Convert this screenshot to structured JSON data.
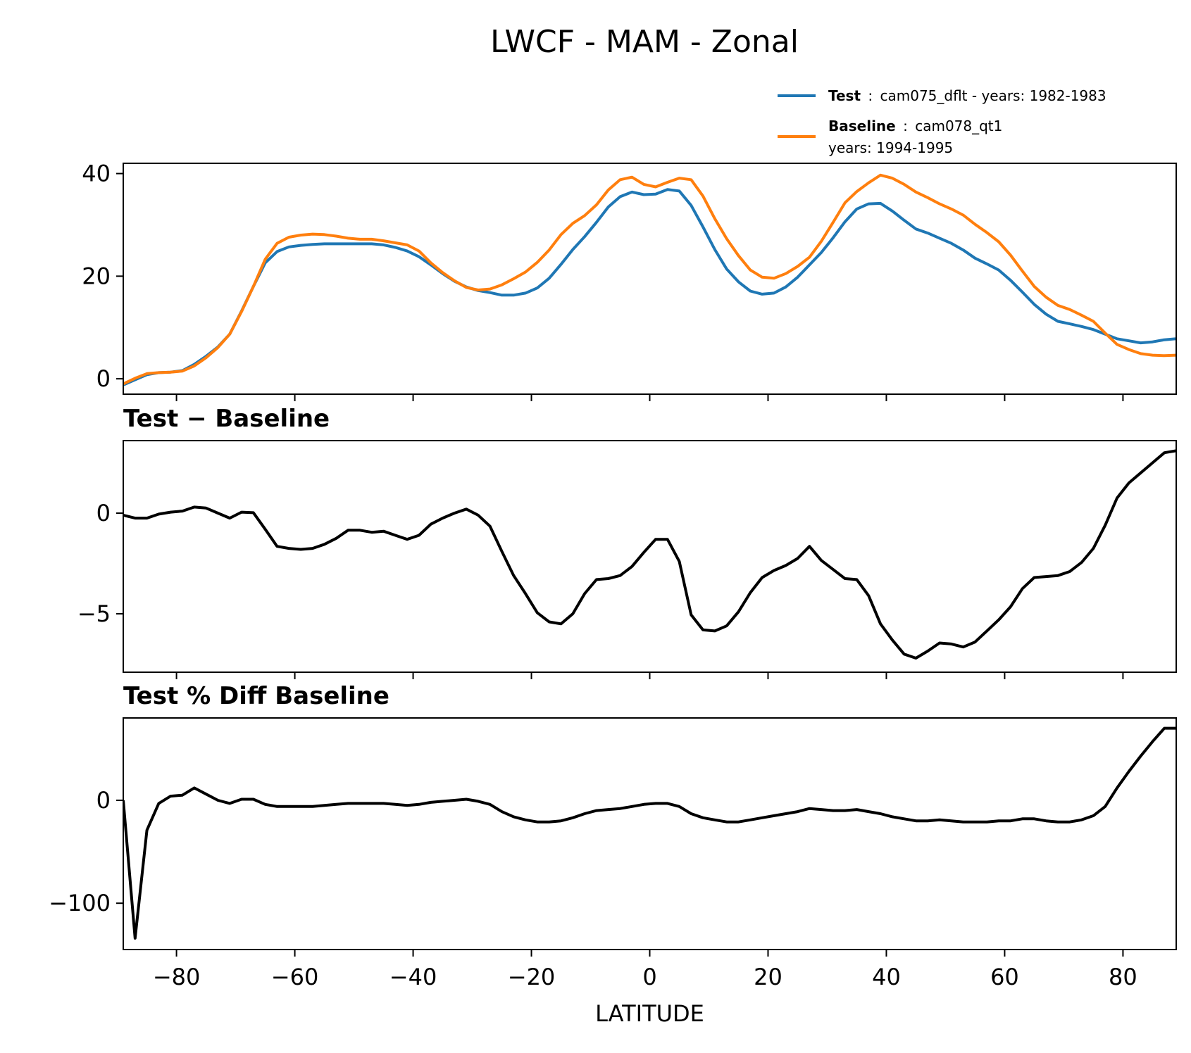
{
  "figure": {
    "title": "LWCF - MAM - Zonal"
  },
  "legend": {
    "entries": [
      {
        "bold": "Test",
        "sep": ":",
        "text": "cam075_dflt - years: 1982-1983",
        "line2": "",
        "color": "#1f77b4"
      },
      {
        "bold": "Baseline",
        "sep": ":",
        "text": "cam078_qt1",
        "line2": "years: 1994-1995",
        "color": "#ff7f0e"
      }
    ]
  },
  "chart_data": [
    {
      "type": "line",
      "title": "",
      "xlabel": "",
      "ylabel": "",
      "xlim": [
        -89,
        89
      ],
      "ylim": [
        -3,
        42
      ],
      "yticks": [
        0,
        20,
        40
      ],
      "xticks": [
        -80,
        -60,
        -40,
        -20,
        0,
        20,
        40,
        60,
        80
      ],
      "show_xtick_labels": false,
      "grid": false,
      "legend": "top-right",
      "x": [
        -89,
        -87,
        -85,
        -83,
        -81,
        -79,
        -77,
        -75,
        -73,
        -71,
        -69,
        -67,
        -65,
        -63,
        -61,
        -59,
        -57,
        -55,
        -53,
        -51,
        -49,
        -47,
        -45,
        -43,
        -41,
        -39,
        -37,
        -35,
        -33,
        -31,
        -29,
        -27,
        -25,
        -23,
        -21,
        -19,
        -17,
        -15,
        -13,
        -11,
        -9,
        -7,
        -5,
        -3,
        -1,
        1,
        3,
        5,
        7,
        9,
        11,
        13,
        15,
        17,
        19,
        21,
        23,
        25,
        27,
        29,
        31,
        33,
        35,
        37,
        39,
        41,
        43,
        45,
        47,
        49,
        51,
        53,
        55,
        57,
        59,
        61,
        63,
        65,
        67,
        69,
        71,
        73,
        75,
        77,
        79,
        81,
        83,
        85,
        87,
        89
      ],
      "series": [
        {
          "name": "Test",
          "color": "#1f77b4",
          "values": [
            -1.2,
            -0.2,
            0.8,
            1.2,
            1.3,
            1.6,
            2.8,
            4.4,
            6.2,
            8.7,
            13.2,
            18.0,
            22.6,
            24.8,
            25.7,
            26.0,
            26.2,
            26.3,
            26.3,
            26.3,
            26.3,
            26.3,
            26.1,
            25.6,
            24.9,
            23.8,
            22.2,
            20.5,
            19.0,
            17.9,
            17.2,
            16.8,
            16.3,
            16.3,
            16.7,
            17.7,
            19.6,
            22.3,
            25.2,
            27.7,
            30.5,
            33.5,
            35.5,
            36.4,
            35.9,
            36.0,
            36.9,
            36.6,
            33.8,
            29.6,
            25.2,
            21.4,
            18.9,
            17.1,
            16.5,
            16.7,
            17.9,
            19.8,
            22.2,
            24.6,
            27.5,
            30.6,
            33.1,
            34.1,
            34.2,
            32.7,
            30.9,
            29.2,
            28.4,
            27.4,
            26.4,
            25.1,
            23.5,
            22.4,
            21.2,
            19.2,
            16.9,
            14.5,
            12.6,
            11.2,
            10.7,
            10.2,
            9.6,
            8.7,
            7.8,
            7.4,
            7.0,
            7.2,
            7.6,
            7.8
          ]
        },
        {
          "name": "Baseline",
          "color": "#ff7f0e",
          "values": [
            -1.0,
            0.1,
            1.0,
            1.2,
            1.3,
            1.5,
            2.5,
            4.1,
            6.1,
            8.7,
            13.1,
            18.0,
            23.3,
            26.4,
            27.6,
            28.0,
            28.2,
            28.1,
            27.8,
            27.4,
            27.2,
            27.2,
            26.9,
            26.5,
            26.1,
            24.9,
            22.6,
            20.7,
            19.1,
            17.8,
            17.3,
            17.5,
            18.3,
            19.5,
            20.8,
            22.7,
            25.1,
            28.1,
            30.3,
            31.8,
            33.9,
            36.8,
            38.8,
            39.3,
            37.9,
            37.4,
            38.3,
            39.1,
            38.8,
            35.6,
            31.2,
            27.3,
            24.0,
            21.2,
            19.8,
            19.6,
            20.5,
            21.9,
            23.7,
            26.8,
            30.5,
            34.3,
            36.5,
            38.2,
            39.7,
            39.1,
            37.9,
            36.4,
            35.3,
            34.1,
            33.1,
            31.9,
            30.1,
            28.5,
            26.7,
            24.1,
            21.0,
            18.0,
            15.9,
            14.3,
            13.5,
            12.4,
            11.2,
            8.9,
            6.7,
            5.7,
            4.9,
            4.6,
            4.5,
            4.6
          ]
        }
      ]
    },
    {
      "type": "line",
      "title": "Test − Baseline",
      "xlabel": "",
      "ylabel": "",
      "xlim": [
        -89,
        89
      ],
      "ylim": [
        -7.9,
        3.6
      ],
      "yticks": [
        0,
        -5
      ],
      "xticks": [
        -80,
        -60,
        -40,
        -20,
        0,
        20,
        40,
        60,
        80
      ],
      "show_xtick_labels": false,
      "grid": false,
      "x": [
        -89,
        -87,
        -85,
        -83,
        -81,
        -79,
        -77,
        -75,
        -73,
        -71,
        -69,
        -67,
        -65,
        -63,
        -61,
        -59,
        -57,
        -55,
        -53,
        -51,
        -49,
        -47,
        -45,
        -43,
        -41,
        -39,
        -37,
        -35,
        -33,
        -31,
        -29,
        -27,
        -25,
        -23,
        -21,
        -19,
        -17,
        -15,
        -13,
        -11,
        -9,
        -7,
        -5,
        -3,
        -1,
        1,
        3,
        5,
        7,
        9,
        11,
        13,
        15,
        17,
        19,
        21,
        23,
        25,
        27,
        29,
        31,
        33,
        35,
        37,
        39,
        41,
        43,
        45,
        47,
        49,
        51,
        53,
        55,
        57,
        59,
        61,
        63,
        65,
        67,
        69,
        71,
        73,
        75,
        77,
        79,
        81,
        83,
        85,
        87,
        89
      ],
      "series": [
        {
          "name": "",
          "color": "#000000",
          "values": [
            -0.1,
            -0.25,
            -0.25,
            -0.05,
            0.05,
            0.1,
            0.3,
            0.25,
            0.0,
            -0.25,
            0.05,
            0.02,
            -0.8,
            -1.65,
            -1.75,
            -1.8,
            -1.75,
            -1.55,
            -1.25,
            -0.85,
            -0.85,
            -0.95,
            -0.9,
            -1.1,
            -1.3,
            -1.1,
            -0.55,
            -0.25,
            0.0,
            0.2,
            -0.1,
            -0.65,
            -1.9,
            -3.1,
            -4.0,
            -4.95,
            -5.4,
            -5.5,
            -5.0,
            -4.0,
            -3.3,
            -3.25,
            -3.1,
            -2.65,
            -1.95,
            -1.3,
            -1.3,
            -2.4,
            -5.05,
            -5.8,
            -5.85,
            -5.6,
            -4.9,
            -3.95,
            -3.2,
            -2.85,
            -2.6,
            -2.25,
            -1.65,
            -2.35,
            -2.8,
            -3.25,
            -3.3,
            -4.1,
            -5.5,
            -6.3,
            -7.0,
            -7.2,
            -6.85,
            -6.45,
            -6.5,
            -6.65,
            -6.4,
            -5.85,
            -5.3,
            -4.65,
            -3.75,
            -3.2,
            -3.15,
            -3.1,
            -2.9,
            -2.45,
            -1.75,
            -0.6,
            0.75,
            1.5,
            2.0,
            2.5,
            3.0,
            3.1
          ]
        }
      ]
    },
    {
      "type": "line",
      "title": "Test % Diff Baseline",
      "xlabel": "LATITUDE",
      "ylabel": "",
      "xlim": [
        -89,
        89
      ],
      "ylim": [
        -145,
        80
      ],
      "yticks": [
        0,
        -100
      ],
      "xticks": [
        -80,
        -60,
        -40,
        -20,
        0,
        20,
        40,
        60,
        80
      ],
      "show_xtick_labels": true,
      "grid": false,
      "x": [
        -89,
        -87,
        -85,
        -83,
        -81,
        -79,
        -77,
        -75,
        -73,
        -71,
        -69,
        -67,
        -65,
        -63,
        -61,
        -59,
        -57,
        -55,
        -53,
        -51,
        -49,
        -47,
        -45,
        -43,
        -41,
        -39,
        -37,
        -35,
        -33,
        -31,
        -29,
        -27,
        -25,
        -23,
        -21,
        -19,
        -17,
        -15,
        -13,
        -11,
        -9,
        -7,
        -5,
        -3,
        -1,
        1,
        3,
        5,
        7,
        9,
        11,
        13,
        15,
        17,
        19,
        21,
        23,
        25,
        27,
        29,
        31,
        33,
        35,
        37,
        39,
        41,
        43,
        45,
        47,
        49,
        51,
        53,
        55,
        57,
        59,
        61,
        63,
        65,
        67,
        69,
        71,
        73,
        75,
        77,
        79,
        81,
        83,
        85,
        87,
        89
      ],
      "series": [
        {
          "name": "",
          "color": "#000000",
          "values": [
            0,
            -134,
            -29,
            -3,
            4,
            5,
            12,
            6,
            0,
            -3,
            1,
            1,
            -4,
            -6,
            -6,
            -6,
            -6,
            -5,
            -4,
            -3,
            -3,
            -3,
            -3,
            -4,
            -5,
            -4,
            -2,
            -1,
            0,
            1,
            -1,
            -4,
            -11,
            -16,
            -19,
            -21,
            -21,
            -20,
            -17,
            -13,
            -10,
            -9,
            -8,
            -6,
            -4,
            -3,
            -3,
            -6,
            -13,
            -17,
            -19,
            -21,
            -21,
            -19,
            -17,
            -15,
            -13,
            -11,
            -8,
            -9,
            -10,
            -10,
            -9,
            -11,
            -13,
            -16,
            -18,
            -20,
            -20,
            -19,
            -20,
            -21,
            -21,
            -21,
            -20,
            -20,
            -18,
            -18,
            -20,
            -21,
            -21,
            -19,
            -15,
            -6,
            12,
            28,
            43,
            57,
            70,
            70
          ]
        }
      ]
    }
  ]
}
